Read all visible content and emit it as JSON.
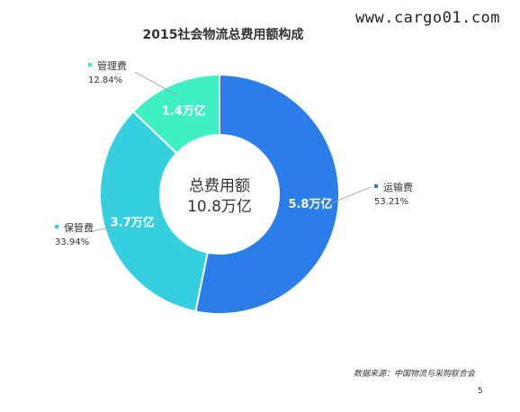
{
  "watermark": "www.cargo01.com",
  "chart_data": {
    "type": "pie",
    "title": "2015社会物流总费用额构成",
    "center_label": {
      "line1": "总费用额",
      "line2": "10.8万亿"
    },
    "slices": [
      {
        "name": "运输费",
        "value": 5.8,
        "value_label": "5.8万亿",
        "percent_label": "53.21%",
        "color": "#2b7de9"
      },
      {
        "name": "保管费",
        "value": 3.7,
        "value_label": "3.7万亿",
        "percent_label": "33.94%",
        "color": "#36cfe0"
      },
      {
        "name": "管理费",
        "value": 1.4,
        "value_label": "1.4万亿",
        "percent_label": "12.84%",
        "color": "#3ff0c3"
      }
    ],
    "legend_placement": "around"
  },
  "footer": {
    "source": "数据来源：中国物流与采购联合会",
    "page": "5"
  }
}
